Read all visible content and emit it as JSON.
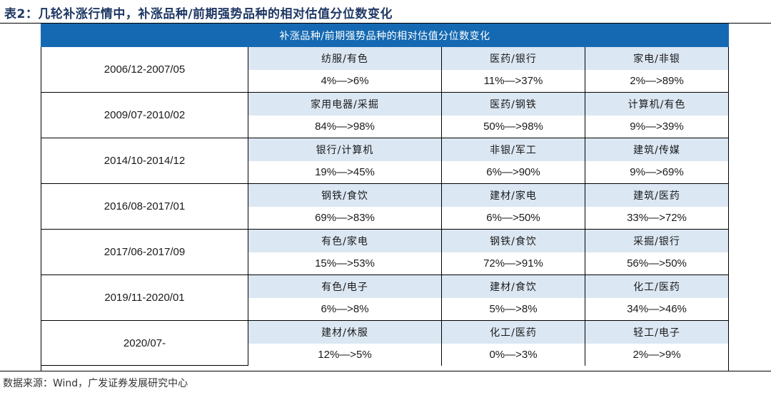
{
  "title": "表2：几轮补涨行情中，补涨品种/前期强势品种的相对估值分位数变化",
  "table": {
    "header": "补涨品种/前期强势品种的相对估值分位数变化",
    "rows": [
      {
        "period": "2006/12-2007/05",
        "items": [
          {
            "name": "纺服/有色",
            "value": "4%—>6%"
          },
          {
            "name": "医药/银行",
            "value": "11%—>37%"
          },
          {
            "name": "家电/非银",
            "value": "2%—>89%"
          }
        ]
      },
      {
        "period": "2009/07-2010/02",
        "items": [
          {
            "name": "家用电器/采掘",
            "value": "84%—>98%"
          },
          {
            "name": "医药/钢铁",
            "value": "50%—>98%"
          },
          {
            "name": "计算机/有色",
            "value": "9%—>39%"
          }
        ]
      },
      {
        "period": "2014/10-2014/12",
        "items": [
          {
            "name": "银行/计算机",
            "value": "19%—>45%"
          },
          {
            "name": "非银/军工",
            "value": "6%—>90%"
          },
          {
            "name": "建筑/传媒",
            "value": "9%—>69%"
          }
        ]
      },
      {
        "period": "2016/08-2017/01",
        "items": [
          {
            "name": "钢铁/食饮",
            "value": "69%—>83%"
          },
          {
            "name": "建材/家电",
            "value": "6%—>50%"
          },
          {
            "name": "建筑/医药",
            "value": "33%—>72%"
          }
        ]
      },
      {
        "period": "2017/06-2017/09",
        "items": [
          {
            "name": "有色/家电",
            "value": "15%—>53%"
          },
          {
            "name": "钢铁/食饮",
            "value": "72%—>91%"
          },
          {
            "name": "采掘/银行",
            "value": "56%—>50%"
          }
        ]
      },
      {
        "period": "2019/11-2020/01",
        "items": [
          {
            "name": "有色/电子",
            "value": "6%—>8%"
          },
          {
            "name": "建材/食饮",
            "value": "5%—>8%"
          },
          {
            "name": "化工/医药",
            "value": "34%—>46%"
          }
        ]
      },
      {
        "period": "2020/07-",
        "items": [
          {
            "name": "建材/休服",
            "value": "12%—>5%"
          },
          {
            "name": "化工/医药",
            "value": "0%—>3%"
          },
          {
            "name": "轻工/电子",
            "value": "2%—>9%"
          }
        ]
      }
    ]
  },
  "source": "数据来源：Wind，广发证券发展研究中心",
  "colors": {
    "header_bg": "#1469b2",
    "name_row_bg": "#dbe7f3",
    "title": "#1f3864"
  }
}
